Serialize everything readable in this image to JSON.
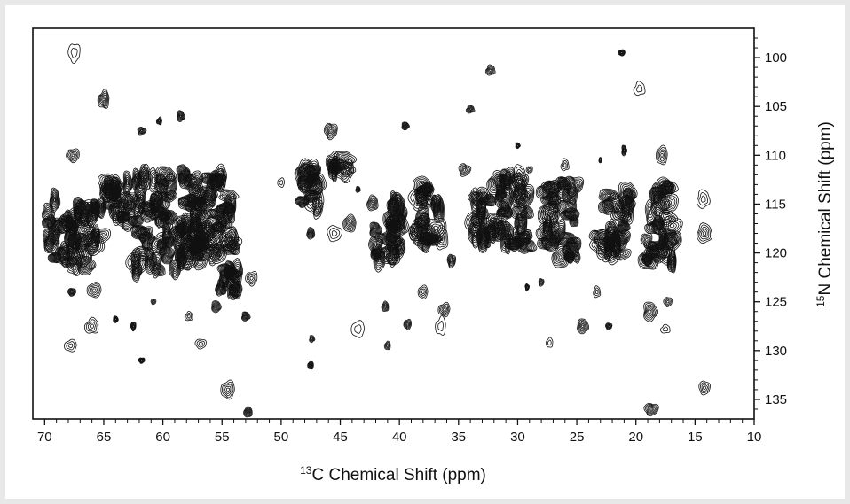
{
  "chart_data": {
    "type": "contour",
    "xlabel": {
      "sup": "13",
      "text": "C Chemical Shift (ppm)"
    },
    "ylabel": {
      "sup": "15",
      "text": "N Chemical Shift (ppm)"
    },
    "x_axis": {
      "range": [
        71,
        10
      ],
      "reversed": true,
      "ticks": [
        70,
        65,
        60,
        55,
        50,
        45,
        40,
        35,
        30,
        25,
        20,
        15,
        10
      ],
      "tick_labels": [
        "70",
        "65",
        "60",
        "55",
        "50",
        "45",
        "40",
        "35",
        "30",
        "25",
        "20",
        "15",
        "10"
      ]
    },
    "y_axis": {
      "range": [
        97,
        137
      ],
      "reversed": true,
      "position": "right",
      "ticks": [
        100,
        105,
        110,
        115,
        120,
        125,
        130,
        135
      ],
      "tick_labels": [
        "100",
        "105",
        "110",
        "115",
        "120",
        "125",
        "130",
        "135"
      ]
    },
    "grid": false,
    "color": "#111111",
    "peak_clusters": [
      {
        "c": 67.5,
        "n": 117.5,
        "wc": 2.8,
        "wn": 4.8
      },
      {
        "c": 63.5,
        "n": 115.0,
        "wc": 1.4,
        "wn": 3.0
      },
      {
        "c": 59.5,
        "n": 117.0,
        "wc": 3.5,
        "wn": 6.5
      },
      {
        "c": 56.0,
        "n": 116.5,
        "wc": 2.5,
        "wn": 5.5
      },
      {
        "c": 54.5,
        "n": 123.5,
        "wc": 0.9,
        "wn": 2.2
      },
      {
        "c": 47.5,
        "n": 114.0,
        "wc": 0.9,
        "wn": 3.0
      },
      {
        "c": 45.0,
        "n": 111.0,
        "wc": 1.0,
        "wn": 0.8
      },
      {
        "c": 41.0,
        "n": 118.0,
        "wc": 1.6,
        "wn": 4.0
      },
      {
        "c": 37.5,
        "n": 116.0,
        "wc": 1.4,
        "wn": 4.2
      },
      {
        "c": 33.0,
        "n": 116.5,
        "wc": 1.0,
        "wn": 3.0
      },
      {
        "c": 30.5,
        "n": 116.0,
        "wc": 1.8,
        "wn": 5.0
      },
      {
        "c": 26.5,
        "n": 116.5,
        "wc": 1.6,
        "wn": 5.0
      },
      {
        "c": 22.0,
        "n": 117.0,
        "wc": 1.8,
        "wn": 4.0
      },
      {
        "c": 18.0,
        "n": 117.0,
        "wc": 1.4,
        "wn": 5.0
      }
    ],
    "peaks": [
      {
        "c": 67.5,
        "n": 99.5
      },
      {
        "c": 65.0,
        "n": 104.3
      },
      {
        "c": 61.8,
        "n": 107.5
      },
      {
        "c": 60.3,
        "n": 106.5
      },
      {
        "c": 58.5,
        "n": 106.0
      },
      {
        "c": 67.6,
        "n": 110.0
      },
      {
        "c": 65.8,
        "n": 123.8
      },
      {
        "c": 66.0,
        "n": 127.5
      },
      {
        "c": 67.7,
        "n": 124.0
      },
      {
        "c": 67.8,
        "n": 129.5
      },
      {
        "c": 61.8,
        "n": 131.0
      },
      {
        "c": 57.8,
        "n": 126.5
      },
      {
        "c": 56.8,
        "n": 129.3
      },
      {
        "c": 60.8,
        "n": 125.0
      },
      {
        "c": 62.5,
        "n": 127.5
      },
      {
        "c": 64.0,
        "n": 126.8
      },
      {
        "c": 54.5,
        "n": 134.0
      },
      {
        "c": 52.8,
        "n": 136.3
      },
      {
        "c": 52.5,
        "n": 122.6
      },
      {
        "c": 53.0,
        "n": 126.5
      },
      {
        "c": 55.5,
        "n": 125.5
      },
      {
        "c": 50.0,
        "n": 112.8
      },
      {
        "c": 47.4,
        "n": 128.8
      },
      {
        "c": 47.5,
        "n": 131.5
      },
      {
        "c": 47.5,
        "n": 118.0
      },
      {
        "c": 45.5,
        "n": 118.0
      },
      {
        "c": 44.2,
        "n": 117.0
      },
      {
        "c": 45.8,
        "n": 107.5
      },
      {
        "c": 43.5,
        "n": 113.5
      },
      {
        "c": 43.5,
        "n": 127.8
      },
      {
        "c": 41.2,
        "n": 125.5
      },
      {
        "c": 41.0,
        "n": 129.5
      },
      {
        "c": 39.3,
        "n": 127.3
      },
      {
        "c": 39.5,
        "n": 107.0
      },
      {
        "c": 38.0,
        "n": 124.0
      },
      {
        "c": 36.5,
        "n": 127.5
      },
      {
        "c": 36.2,
        "n": 125.8
      },
      {
        "c": 35.6,
        "n": 120.8
      },
      {
        "c": 32.3,
        "n": 101.3
      },
      {
        "c": 34.0,
        "n": 105.3
      },
      {
        "c": 29.2,
        "n": 123.5
      },
      {
        "c": 28.0,
        "n": 123.0
      },
      {
        "c": 27.3,
        "n": 129.2
      },
      {
        "c": 25.0,
        "n": 120.5
      },
      {
        "c": 23.3,
        "n": 124.0
      },
      {
        "c": 21.2,
        "n": 99.5
      },
      {
        "c": 19.7,
        "n": 103.2
      },
      {
        "c": 21.0,
        "n": 109.5
      },
      {
        "c": 23.0,
        "n": 110.5
      },
      {
        "c": 24.5,
        "n": 127.5
      },
      {
        "c": 22.3,
        "n": 127.5
      },
      {
        "c": 18.8,
        "n": 126.0
      },
      {
        "c": 17.3,
        "n": 125.0
      },
      {
        "c": 17.5,
        "n": 127.8
      },
      {
        "c": 18.7,
        "n": 136.0
      },
      {
        "c": 14.2,
        "n": 133.8
      },
      {
        "c": 14.2,
        "n": 118.0
      },
      {
        "c": 14.3,
        "n": 114.5
      },
      {
        "c": 17.8,
        "n": 110.0
      },
      {
        "c": 26.0,
        "n": 111.0
      },
      {
        "c": 29.0,
        "n": 111.5
      },
      {
        "c": 34.5,
        "n": 111.5
      },
      {
        "c": 30.0,
        "n": 109.0
      }
    ]
  }
}
